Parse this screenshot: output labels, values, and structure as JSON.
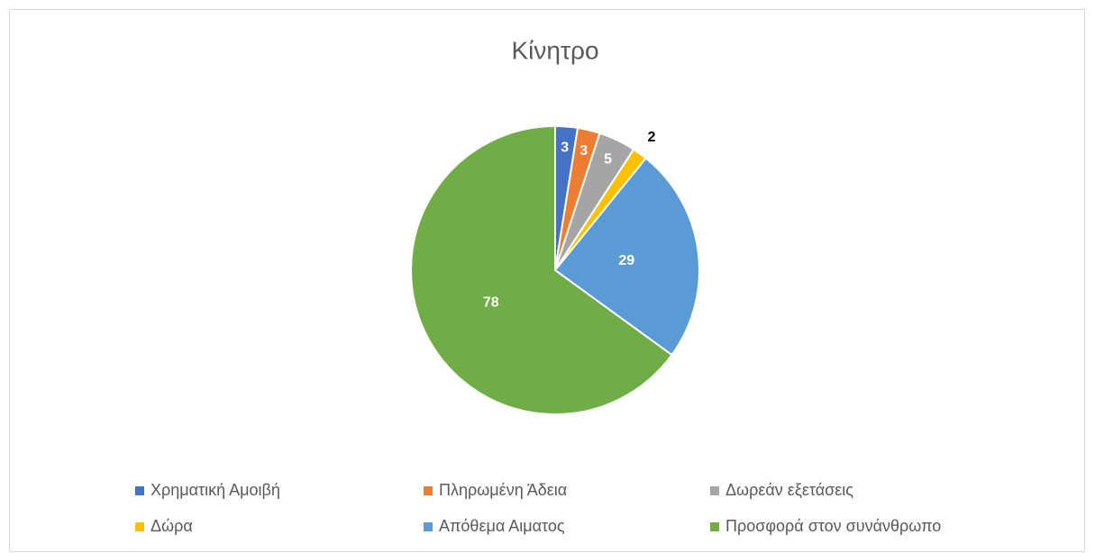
{
  "chart_data": {
    "type": "pie",
    "title": "Κίνητρο",
    "categories": [
      "Χρηματική Αμοιβή",
      "Πληρωμένη Άδεια",
      "Δωρεάν εξετάσεις",
      "Δώρα",
      "Απόθεμα Αιματος",
      "Προσφορά στον συνάνθρωπο"
    ],
    "values": [
      3,
      3,
      5,
      2,
      29,
      78
    ],
    "colors": [
      "#4472c4",
      "#ed7d31",
      "#a5a5a5",
      "#ffc000",
      "#5b9bd5",
      "#70ad47"
    ],
    "legend": "bottom"
  }
}
